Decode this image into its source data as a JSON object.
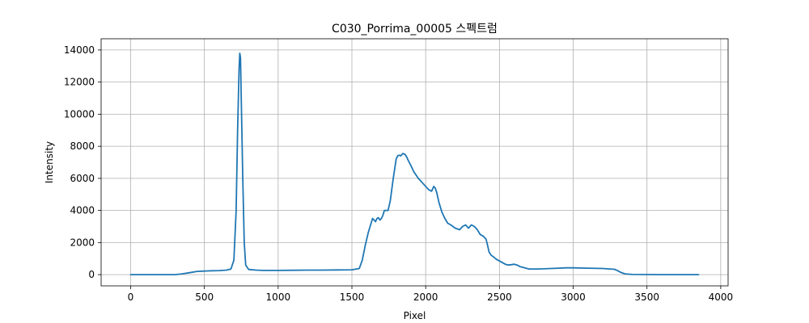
{
  "chart_data": {
    "type": "line",
    "title": "C030_Porrima_00005 스펙트럼",
    "xlabel": "Pixel",
    "ylabel": "Intensity",
    "xlim": [
      -200,
      4050
    ],
    "ylim": [
      -700,
      14700
    ],
    "xticks": [
      0,
      500,
      1000,
      1500,
      2000,
      2500,
      3000,
      3500,
      4000
    ],
    "yticks": [
      0,
      2000,
      4000,
      6000,
      8000,
      10000,
      12000,
      14000
    ],
    "xtick_labels": [
      "0",
      "500",
      "1000",
      "1500",
      "2000",
      "2500",
      "3000",
      "3500",
      "4000"
    ],
    "ytick_labels": [
      "0",
      "2000",
      "4000",
      "6000",
      "8000",
      "10000",
      "12000",
      "14000"
    ],
    "grid": true,
    "series": [
      {
        "color": "#1f77b4",
        "x": [
          0,
          300,
          350,
          400,
          450,
          500,
          550,
          600,
          650,
          680,
          700,
          715,
          725,
          735,
          740,
          745,
          750,
          760,
          770,
          780,
          800,
          850,
          900,
          1000,
          1100,
          1200,
          1300,
          1400,
          1500,
          1550,
          1570,
          1590,
          1610,
          1630,
          1640,
          1650,
          1660,
          1670,
          1680,
          1690,
          1700,
          1710,
          1720,
          1730,
          1745,
          1760,
          1780,
          1800,
          1810,
          1820,
          1830,
          1845,
          1860,
          1870,
          1880,
          1900,
          1920,
          1950,
          1980,
          2000,
          2020,
          2040,
          2055,
          2065,
          2075,
          2090,
          2110,
          2130,
          2150,
          2170,
          2200,
          2230,
          2250,
          2270,
          2290,
          2310,
          2330,
          2350,
          2370,
          2390,
          2410,
          2420,
          2430,
          2445,
          2460,
          2480,
          2500,
          2520,
          2540,
          2560,
          2580,
          2600,
          2620,
          2640,
          2660,
          2680,
          2700,
          2750,
          2800,
          2850,
          2900,
          2950,
          3000,
          3100,
          3200,
          3250,
          3280,
          3300,
          3320,
          3350,
          3400,
          3600,
          3850
        ],
        "y": [
          0,
          0,
          50,
          120,
          200,
          220,
          240,
          250,
          280,
          350,
          900,
          4000,
          9000,
          12800,
          13800,
          13500,
          11000,
          6000,
          2000,
          600,
          320,
          280,
          260,
          260,
          270,
          280,
          280,
          290,
          300,
          380,
          900,
          1800,
          2600,
          3200,
          3500,
          3400,
          3300,
          3500,
          3550,
          3400,
          3500,
          3700,
          4000,
          4000,
          4000,
          4600,
          6000,
          7200,
          7400,
          7450,
          7400,
          7550,
          7500,
          7350,
          7150,
          6800,
          6400,
          6000,
          5700,
          5500,
          5300,
          5200,
          5500,
          5400,
          5100,
          4500,
          3900,
          3500,
          3200,
          3100,
          2900,
          2800,
          3000,
          3100,
          2900,
          3100,
          3000,
          2800,
          2500,
          2400,
          2200,
          1800,
          1400,
          1200,
          1100,
          950,
          850,
          750,
          650,
          600,
          620,
          650,
          600,
          500,
          450,
          400,
          350,
          350,
          360,
          380,
          400,
          420,
          420,
          400,
          380,
          350,
          330,
          250,
          150,
          50,
          10,
          0,
          0
        ]
      }
    ]
  }
}
